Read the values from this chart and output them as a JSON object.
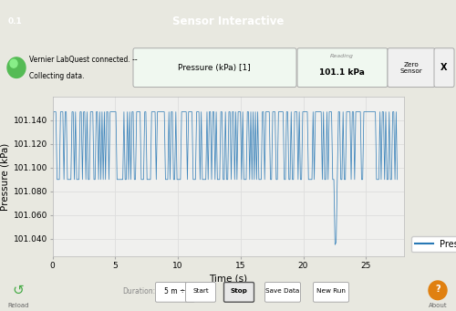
{
  "title": "Sensor Interactive",
  "version_label": "0.1",
  "xlabel": "Time (s)",
  "ylabel": "Pressure (kPa)",
  "xlim": [
    0,
    28
  ],
  "ylim": [
    101.025,
    101.16
  ],
  "yticks": [
    101.04,
    101.06,
    101.08,
    101.1,
    101.12,
    101.14
  ],
  "xticks": [
    0,
    5,
    10,
    15,
    20,
    25
  ],
  "high_value": 101.147,
  "low_value": 101.09,
  "spike_low": 101.035,
  "spike_time": 22.5,
  "num_points": 300,
  "line_color": "#2878b5",
  "bg_color": "#e8e8e0",
  "plot_bg": "#f0f0ee",
  "header_bg": "#7ec8c8",
  "header_text_color": "white",
  "toolbar_bg": "#ffffff",
  "footer_bg": "#c8c8aa",
  "legend_label": "Pressure",
  "reading_text": "101.1 kPa",
  "sensor_label": "Pressure (kPa) [1]",
  "connection_line1": "Vernier LabQuest connected. --",
  "connection_line2": "Collecting data.",
  "duration_text": "5 m",
  "reading_label": "Reading"
}
